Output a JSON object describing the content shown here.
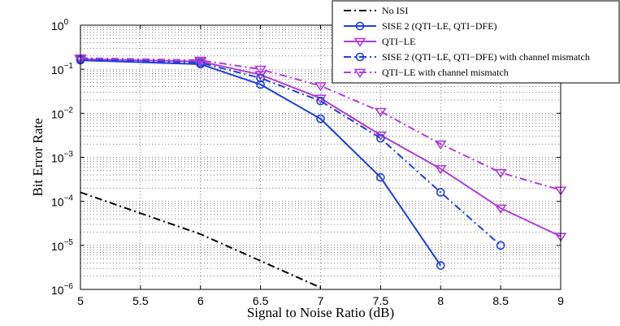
{
  "chart_data": {
    "type": "line",
    "title": "",
    "xlabel": "Signal to Noise Ratio (dB)",
    "ylabel": "Bit Error Rate",
    "xscale": "linear",
    "yscale": "log",
    "xlim": [
      5,
      9
    ],
    "ylim": [
      1e-06,
      1
    ],
    "grid": true,
    "legend_position": "top-right",
    "x_ticks": [
      5,
      5.5,
      6,
      6.5,
      7,
      7.5,
      8,
      8.5,
      9
    ],
    "x_tick_labels": [
      "5",
      "5.5",
      "6",
      "6.5",
      "7",
      "7.5",
      "8",
      "8.5",
      "9"
    ],
    "y_ticks": [
      {
        "value": 1,
        "base": "10",
        "exp": "0"
      },
      {
        "value": 0.1,
        "base": "10",
        "exp": "−1"
      },
      {
        "value": 0.01,
        "base": "10",
        "exp": "−2"
      },
      {
        "value": 0.001,
        "base": "10",
        "exp": "−3"
      },
      {
        "value": 0.0001,
        "base": "10",
        "exp": "−4"
      },
      {
        "value": 1e-05,
        "base": "10",
        "exp": "−5"
      },
      {
        "value": 1e-06,
        "base": "10",
        "exp": "−6"
      }
    ],
    "series": [
      {
        "name": "No ISI",
        "color": "#000000",
        "dash": "dashdot",
        "marker": "none",
        "x": [
          5,
          6,
          7
        ],
        "y": [
          0.00016,
          1.8e-05,
          1.1e-06
        ]
      },
      {
        "name": "SISE 2 (QTI−LE, QTI−DFE)",
        "color": "#1f3fdc",
        "dash": "solid",
        "marker": "circle",
        "x": [
          5,
          6,
          6.5,
          7,
          7.5,
          8
        ],
        "y": [
          0.16,
          0.13,
          0.045,
          0.0075,
          0.00035,
          3.5e-06
        ]
      },
      {
        "name": "QTI−LE",
        "color": "#b03cd8",
        "dash": "solid",
        "marker": "triangle-down",
        "x": [
          5,
          6,
          6.5,
          7,
          7.5,
          8,
          8.5,
          9
        ],
        "y": [
          0.17,
          0.15,
          0.075,
          0.022,
          0.0032,
          0.00055,
          7e-05,
          1.6e-05
        ]
      },
      {
        "name": "SISE 2 (QTI−LE, QTI−DFE) with channel mismatch",
        "color": "#1f3fdc",
        "dash": "dashdot",
        "marker": "circle",
        "x": [
          5,
          6,
          6.5,
          7,
          7.5,
          8,
          8.5
        ],
        "y": [
          0.17,
          0.14,
          0.063,
          0.019,
          0.0027,
          0.00016,
          1e-05
        ]
      },
      {
        "name": "QTI−LE with channel mismatch",
        "color": "#b03cd8",
        "dash": "dashdot",
        "marker": "triangle-down",
        "x": [
          5,
          6,
          6.5,
          7,
          7.5,
          8,
          8.5,
          9
        ],
        "y": [
          0.18,
          0.16,
          0.1,
          0.042,
          0.011,
          0.002,
          0.00045,
          0.00018
        ]
      }
    ]
  }
}
